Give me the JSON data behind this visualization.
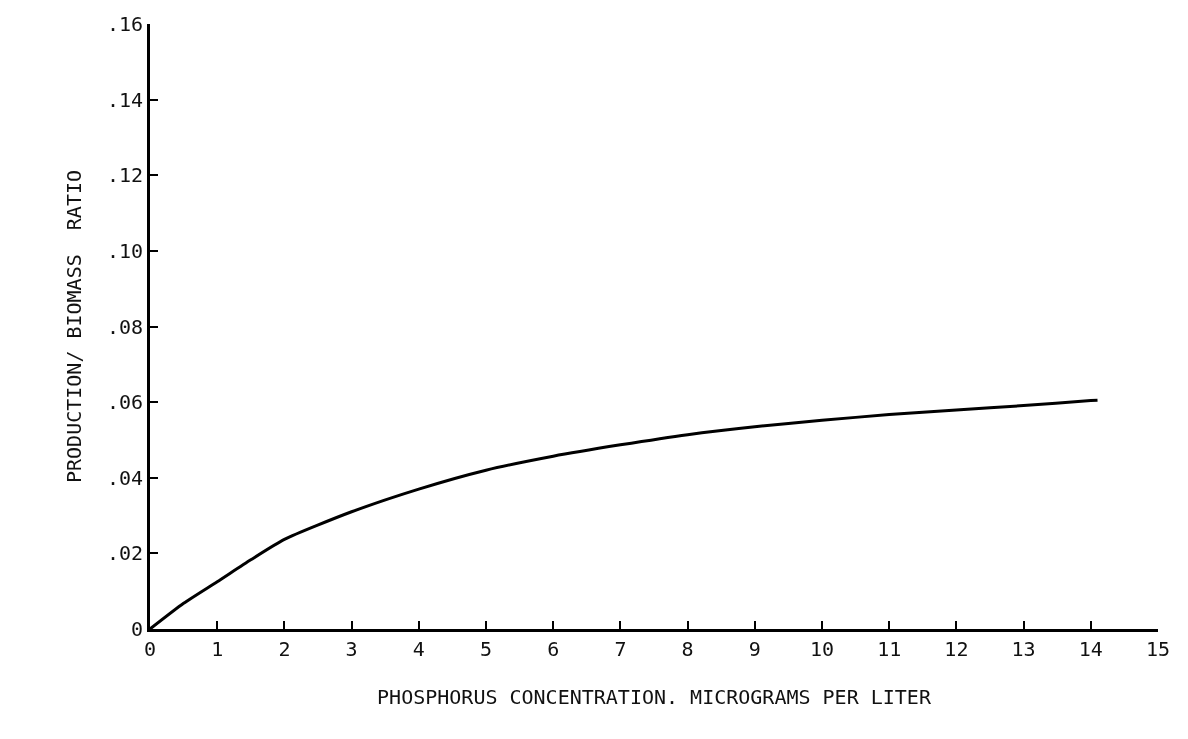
{
  "chart_data": {
    "type": "line",
    "xlabel": "PHOSPHORUS CONCENTRATION. MICROGRAMS PER LITER",
    "ylabel": "PRODUCTION/ BIOMASS  RATIO",
    "x": [
      0,
      0.5,
      1,
      1.5,
      2,
      3,
      4,
      5,
      6,
      7,
      8,
      9,
      10,
      11,
      12,
      13,
      14,
      14.1
    ],
    "series": [
      {
        "color": "#000000",
        "values": [
          0,
          0.0068,
          0.0125,
          0.0183,
          0.0237,
          0.031,
          0.037,
          0.042,
          0.0457,
          0.0487,
          0.0514,
          0.0535,
          0.0552,
          0.0567,
          0.0579,
          0.0591,
          0.0604,
          0.0605
        ]
      }
    ],
    "xlim": [
      0,
      15
    ],
    "xticks": [
      0,
      1,
      2,
      3,
      4,
      5,
      6,
      7,
      8,
      9,
      10,
      11,
      12,
      13,
      14,
      15
    ],
    "ylim": [
      0,
      0.16
    ],
    "yticks": [
      {
        "value": 0,
        "label": "0"
      },
      {
        "value": 0.02,
        "label": ".02"
      },
      {
        "value": 0.04,
        "label": ".04"
      },
      {
        "value": 0.06,
        "label": ".06"
      },
      {
        "value": 0.08,
        "label": ".08"
      },
      {
        "value": 0.1,
        "label": ".10"
      },
      {
        "value": 0.12,
        "label": ".12"
      },
      {
        "value": 0.14,
        "label": ".14"
      },
      {
        "value": 0.16,
        "label": ".16"
      }
    ],
    "grid": false,
    "marker": "none",
    "line_style": "solid"
  }
}
